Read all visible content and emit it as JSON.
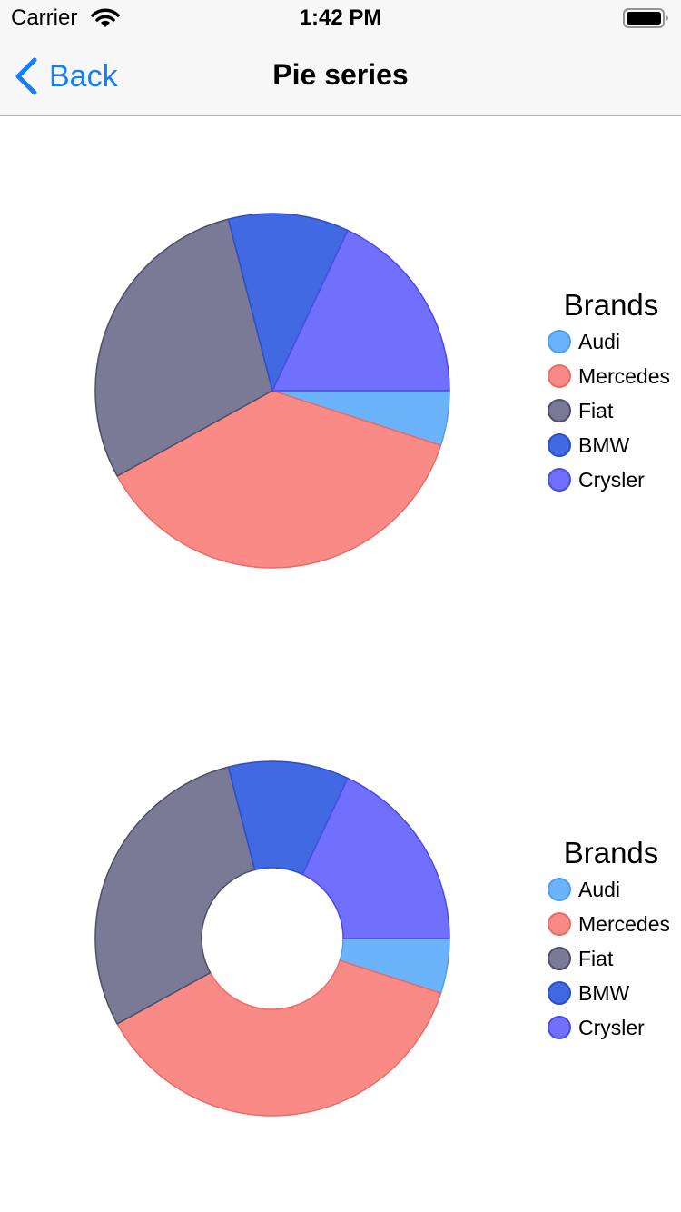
{
  "status_bar": {
    "carrier": "Carrier",
    "time": "1:42 PM"
  },
  "nav": {
    "back_label": "Back",
    "title": "Pie series"
  },
  "chart_data": [
    {
      "type": "pie",
      "title": "",
      "legend_title": "Brands",
      "legend_position": "right",
      "hole": 0,
      "categories": [
        "Audi",
        "Mercedes",
        "Fiat",
        "BMW",
        "Crysler"
      ],
      "values": [
        5,
        37,
        29,
        11,
        18
      ],
      "colors": [
        "#6bb3fa",
        "#f98a85",
        "#7a7a96",
        "#4169e1",
        "#7070fc"
      ],
      "border_colors": [
        "#4f9ef0",
        "#e86c6a",
        "#4e4e66",
        "#2c4fc8",
        "#4a4ae8"
      ]
    },
    {
      "type": "pie",
      "title": "",
      "legend_title": "Brands",
      "legend_position": "right",
      "hole": 0.4,
      "categories": [
        "Audi",
        "Mercedes",
        "Fiat",
        "BMW",
        "Crysler"
      ],
      "values": [
        5,
        37,
        29,
        11,
        18
      ],
      "colors": [
        "#6bb3fa",
        "#f98a85",
        "#7a7a96",
        "#4169e1",
        "#7070fc"
      ],
      "border_colors": [
        "#4f9ef0",
        "#e86c6a",
        "#4e4e66",
        "#2c4fc8",
        "#4a4ae8"
      ]
    }
  ]
}
